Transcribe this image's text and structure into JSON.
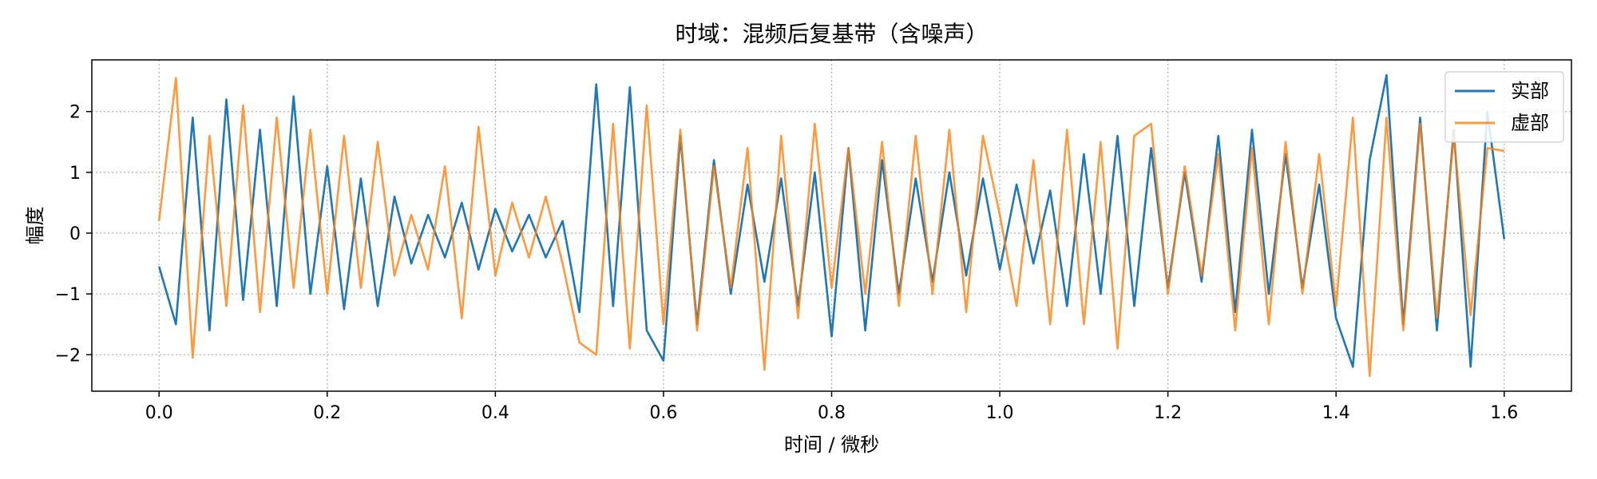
{
  "chart_data": {
    "type": "line",
    "title": "时域：混频后复基带（含噪声）",
    "xlabel": "时间 / 微秒",
    "ylabel": "幅度",
    "xlim": [
      -0.08,
      1.68
    ],
    "ylim": [
      -2.6,
      2.85
    ],
    "xticks": [
      0.0,
      0.2,
      0.4,
      0.6,
      0.8,
      1.0,
      1.2,
      1.4,
      1.6
    ],
    "xtick_labels": [
      "0.0",
      "0.2",
      "0.4",
      "0.6",
      "0.8",
      "1.0",
      "1.2",
      "1.4",
      "1.6"
    ],
    "yticks": [
      -2,
      -1,
      0,
      1,
      2
    ],
    "ytick_labels": [
      "−2",
      "−1",
      "0",
      "1",
      "2"
    ],
    "grid": true,
    "legend_position": "top-right",
    "x": [
      0.0,
      0.02,
      0.04,
      0.06,
      0.08,
      0.1,
      0.12,
      0.14,
      0.16,
      0.18,
      0.2,
      0.22,
      0.24,
      0.26,
      0.28,
      0.3,
      0.32,
      0.34,
      0.36,
      0.38,
      0.4,
      0.42,
      0.44,
      0.46,
      0.48,
      0.5,
      0.52,
      0.54,
      0.56,
      0.58,
      0.6,
      0.62,
      0.64,
      0.66,
      0.68,
      0.7,
      0.72,
      0.74,
      0.76,
      0.78,
      0.8,
      0.82,
      0.84,
      0.86,
      0.88,
      0.9,
      0.92,
      0.94,
      0.96,
      0.98,
      1.0,
      1.02,
      1.04,
      1.06,
      1.08,
      1.1,
      1.12,
      1.14,
      1.16,
      1.18,
      1.2,
      1.22,
      1.24,
      1.26,
      1.28,
      1.3,
      1.32,
      1.34,
      1.36,
      1.38,
      1.4,
      1.42,
      1.44,
      1.46,
      1.48,
      1.5,
      1.52,
      1.54,
      1.56,
      1.58,
      1.6
    ],
    "series": [
      {
        "name": "实部",
        "color": "#1f77b4",
        "opacity": 1.0,
        "values": [
          -0.55,
          -1.5,
          1.9,
          -1.6,
          2.2,
          -1.1,
          1.7,
          -1.2,
          2.25,
          -1.0,
          1.1,
          -1.25,
          0.9,
          -1.2,
          0.6,
          -0.5,
          0.3,
          -0.4,
          0.5,
          -0.6,
          0.4,
          -0.3,
          0.3,
          -0.4,
          0.2,
          -1.3,
          2.45,
          -1.2,
          2.4,
          -1.6,
          -2.1,
          1.6,
          -1.5,
          1.2,
          -1.0,
          0.8,
          -0.8,
          0.9,
          -1.2,
          1.0,
          -1.7,
          1.4,
          -1.6,
          1.2,
          -1.0,
          0.9,
          -0.8,
          1.0,
          -0.7,
          0.9,
          -0.6,
          0.8,
          -0.5,
          0.7,
          -1.2,
          1.3,
          -1.0,
          1.6,
          -1.2,
          1.4,
          -0.9,
          1.0,
          -0.8,
          1.6,
          -1.3,
          1.7,
          -1.0,
          1.3,
          -0.9,
          0.8,
          -1.4,
          -2.2,
          1.2,
          2.6,
          -1.5,
          1.9,
          -1.6,
          1.7,
          -2.2,
          2.0,
          -0.1
        ]
      },
      {
        "name": "虚部",
        "color": "#ff7f0e",
        "opacity": 0.8,
        "values": [
          0.2,
          2.55,
          -2.05,
          1.6,
          -1.2,
          2.1,
          -1.3,
          1.9,
          -0.9,
          1.7,
          -1.0,
          1.6,
          -0.9,
          1.5,
          -0.7,
          0.3,
          -0.6,
          1.1,
          -1.4,
          1.75,
          -0.7,
          0.5,
          -0.4,
          0.6,
          -0.5,
          -1.8,
          -2.0,
          1.8,
          -1.9,
          2.1,
          -1.5,
          1.7,
          -1.6,
          1.1,
          -0.9,
          1.4,
          -2.25,
          1.6,
          -1.4,
          1.8,
          -0.9,
          1.4,
          -1.0,
          1.5,
          -1.2,
          1.6,
          -1.0,
          1.7,
          -1.3,
          1.6,
          0.3,
          -1.2,
          1.2,
          -1.5,
          1.7,
          -1.5,
          1.5,
          -1.9,
          1.6,
          1.8,
          -1.0,
          1.1,
          -0.7,
          1.3,
          -1.6,
          1.4,
          -1.5,
          1.5,
          -1.0,
          1.3,
          -1.2,
          1.9,
          -2.35,
          1.9,
          -1.6,
          1.8,
          -1.4,
          1.6,
          -1.35,
          1.4,
          1.35
        ]
      }
    ]
  }
}
